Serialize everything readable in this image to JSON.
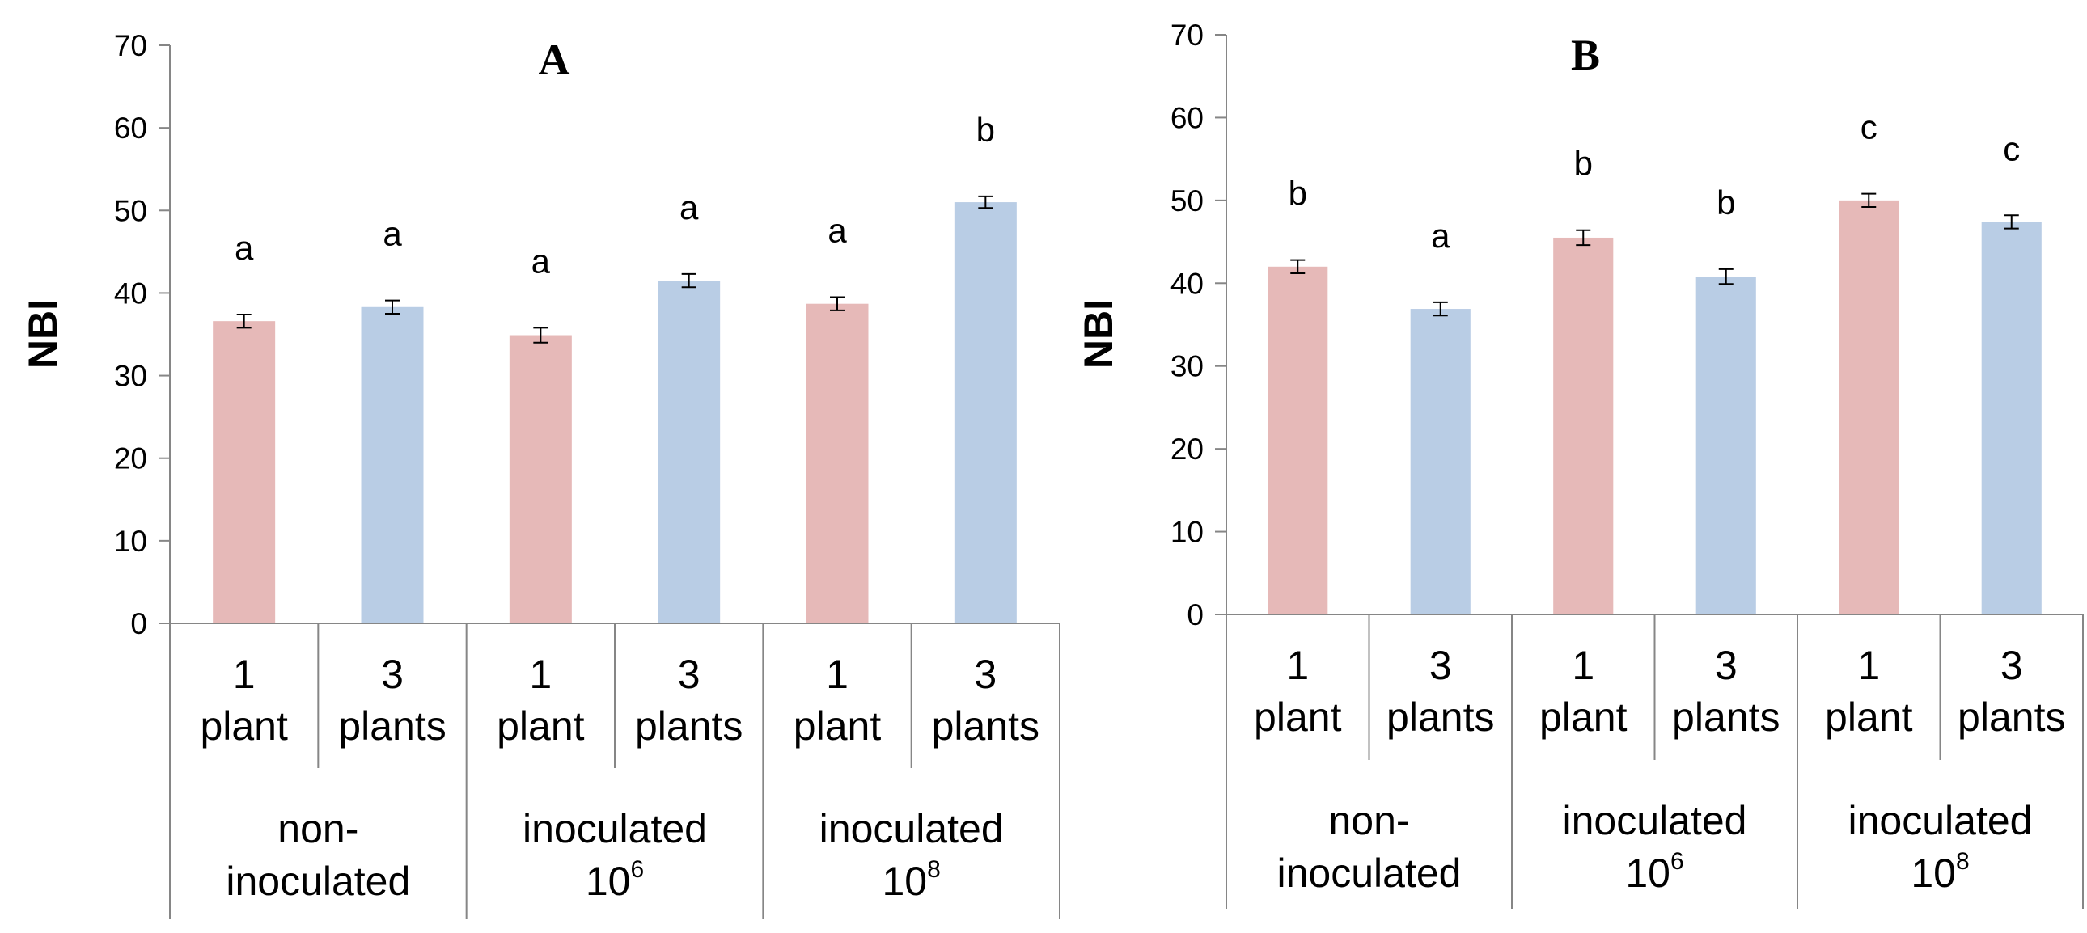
{
  "chart_data": [
    {
      "type": "bar",
      "title": "A",
      "ylabel": "NBI",
      "xlabel": "",
      "ylim": [
        0,
        70
      ],
      "yticks": [
        0,
        10,
        20,
        30,
        40,
        50,
        60,
        70
      ],
      "grid": false,
      "categories": [
        "1 plant",
        "3 plants",
        "1 plant",
        "3 plants",
        "1 plant",
        "3 plants"
      ],
      "category_lines": [
        [
          "1",
          "plant"
        ],
        [
          "3",
          "plants"
        ],
        [
          "1",
          "plant"
        ],
        [
          "3",
          "plants"
        ],
        [
          "1",
          "plant"
        ],
        [
          "3",
          "plants"
        ]
      ],
      "groups": [
        {
          "lines": [
            {
              "text": "non-",
              "sup": ""
            },
            {
              "text": "inoculated",
              "sup": ""
            }
          ]
        },
        {
          "lines": [
            {
              "text": "inoculated",
              "sup": ""
            },
            {
              "text": "10",
              "sup": "6"
            }
          ]
        },
        {
          "lines": [
            {
              "text": "inoculated",
              "sup": ""
            },
            {
              "text": "10",
              "sup": "8"
            }
          ]
        }
      ],
      "values": [
        36.6,
        38.3,
        34.9,
        41.5,
        38.7,
        51.0
      ],
      "errors": [
        0.8,
        0.8,
        0.9,
        0.8,
        0.8,
        0.7
      ],
      "significance": [
        "a",
        "a",
        "a",
        "a",
        "a",
        "b"
      ],
      "colors": [
        "#e6b9b8",
        "#b9cde5",
        "#e6b9b8",
        "#b9cde5",
        "#e6b9b8",
        "#b9cde5"
      ]
    },
    {
      "type": "bar",
      "title": "B",
      "ylabel": "NBI",
      "xlabel": "",
      "ylim": [
        0,
        70
      ],
      "yticks": [
        0,
        10,
        20,
        30,
        40,
        50,
        60,
        70
      ],
      "grid": false,
      "categories": [
        "1 plant",
        "3 plants",
        "1 plant",
        "3 plants",
        "1 plant",
        "3 plants"
      ],
      "category_lines": [
        [
          "1",
          "plant"
        ],
        [
          "3",
          "plants"
        ],
        [
          "1",
          "plant"
        ],
        [
          "3",
          "plants"
        ],
        [
          "1",
          "plant"
        ],
        [
          "3",
          "plants"
        ]
      ],
      "groups": [
        {
          "lines": [
            {
              "text": "non-",
              "sup": ""
            },
            {
              "text": "inoculated",
              "sup": ""
            }
          ]
        },
        {
          "lines": [
            {
              "text": "inoculated",
              "sup": ""
            },
            {
              "text": "10",
              "sup": "6"
            }
          ]
        },
        {
          "lines": [
            {
              "text": "inoculated",
              "sup": ""
            },
            {
              "text": "10",
              "sup": "8"
            }
          ]
        }
      ],
      "values": [
        42.0,
        36.9,
        45.5,
        40.8,
        50.0,
        47.4
      ],
      "errors": [
        0.8,
        0.8,
        0.9,
        0.9,
        0.8,
        0.8
      ],
      "significance": [
        "b",
        "a",
        "b",
        "b",
        "c",
        "c"
      ],
      "colors": [
        "#e6b9b8",
        "#b9cde5",
        "#e6b9b8",
        "#b9cde5",
        "#e6b9b8",
        "#b9cde5"
      ]
    }
  ]
}
